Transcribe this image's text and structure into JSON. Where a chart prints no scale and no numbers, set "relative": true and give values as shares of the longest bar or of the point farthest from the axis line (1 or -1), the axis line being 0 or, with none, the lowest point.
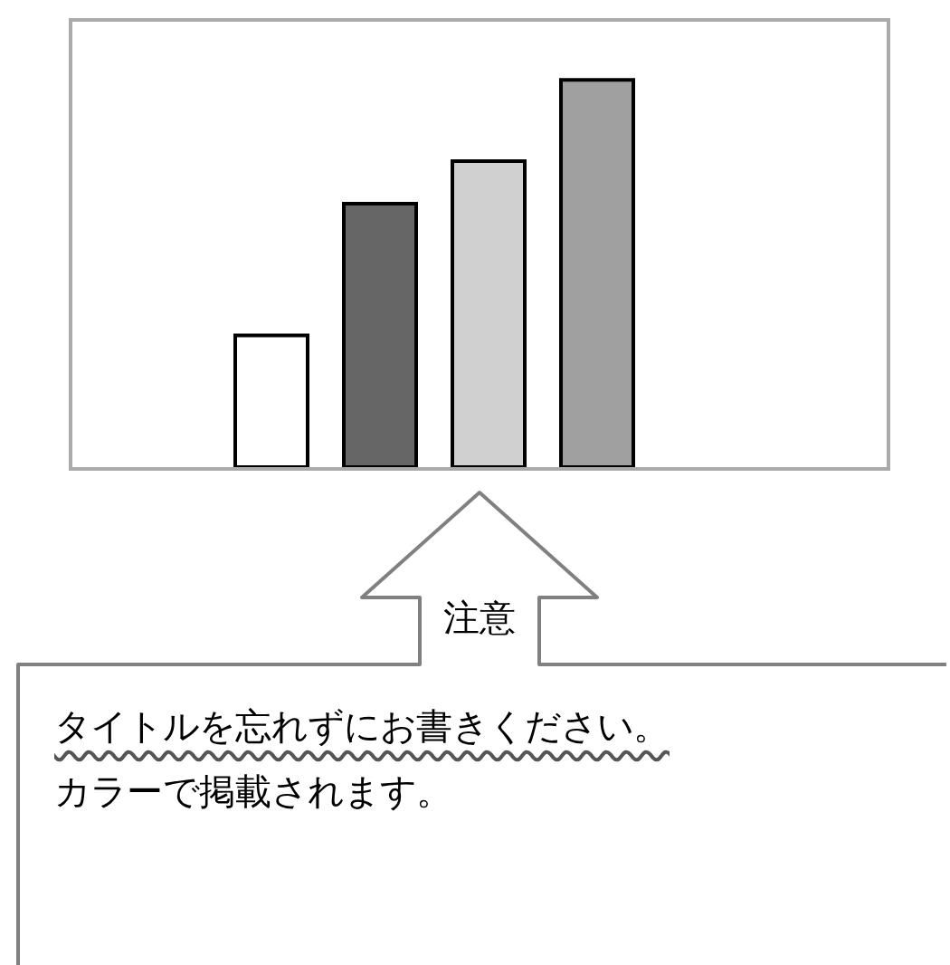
{
  "chart_data": {
    "type": "bar",
    "relative": true,
    "categories": [
      null,
      null,
      null,
      null
    ],
    "values": [
      0.34,
      0.68,
      0.79,
      1
    ],
    "colors": [
      "#ffffff",
      "#666666",
      "#d0d0d0",
      "#a0a0a0"
    ],
    "annotations": [
      "注意",
      "タイトルを忘れずにお書きください。",
      "カラーで掲載されます。"
    ]
  }
}
